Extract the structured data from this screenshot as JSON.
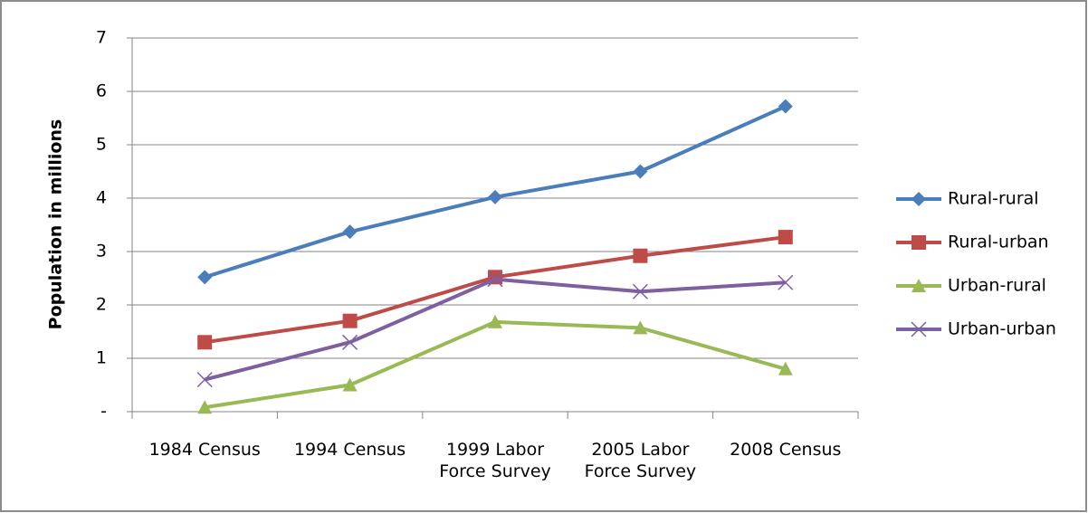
{
  "chart_data": {
    "type": "line",
    "y_label": "Population in millions",
    "categories": [
      "1984 Census",
      "1994 Census",
      "1999 Labor Force Survey",
      "2005 Labor Force Survey",
      "2008 Census"
    ],
    "series": [
      {
        "name": "Rural-rural",
        "color": "#4a7ebb",
        "marker": "diamond",
        "values": [
          2.52,
          3.37,
          4.02,
          4.5,
          5.72
        ]
      },
      {
        "name": "Rural-urban",
        "color": "#be4b48",
        "marker": "square",
        "values": [
          1.3,
          1.7,
          2.52,
          2.92,
          3.27
        ]
      },
      {
        "name": "Urban-rural",
        "color": "#98b954",
        "marker": "triangle",
        "values": [
          0.08,
          0.5,
          1.68,
          1.57,
          0.8
        ]
      },
      {
        "name": "Urban-urban",
        "color": "#7d60a0",
        "marker": "x",
        "values": [
          0.6,
          1.3,
          2.48,
          2.25,
          2.42
        ]
      }
    ],
    "ylim": [
      0,
      7
    ],
    "yticks": [
      {
        "value": 0,
        "label": "-"
      },
      1,
      2,
      3,
      4,
      5,
      6,
      7
    ],
    "grid": true,
    "legend": "right"
  }
}
